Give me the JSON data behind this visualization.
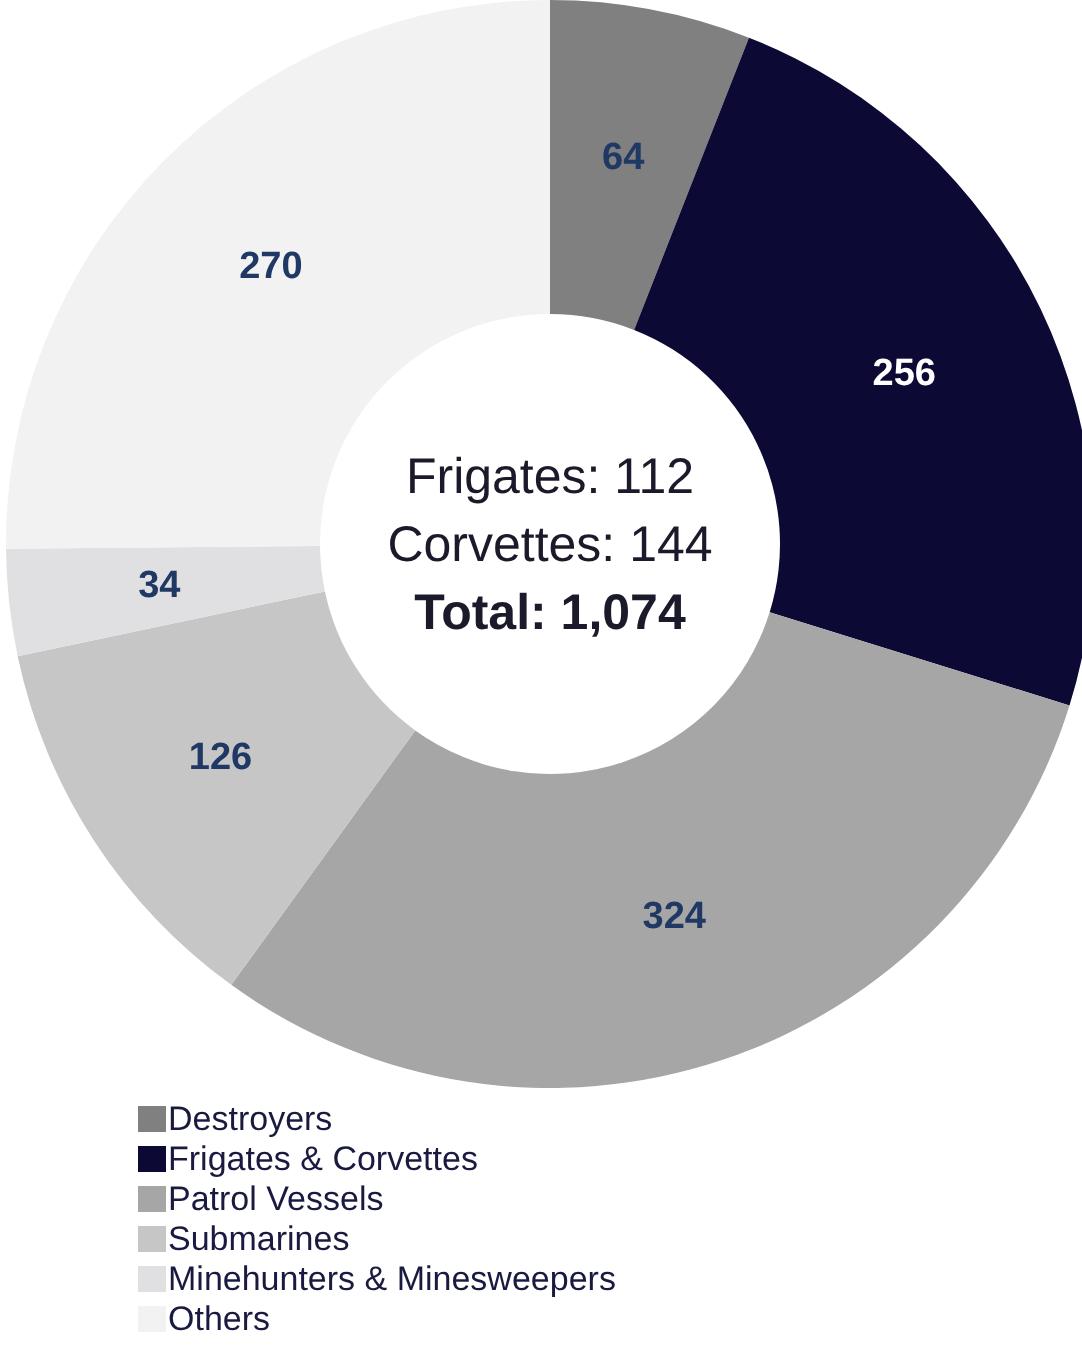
{
  "chart_data": {
    "type": "donut",
    "categories": [
      "Destroyers",
      "Frigates & Corvettes",
      "Patrol Vessels",
      "Submarines",
      "Minehunters & Minesweepers",
      "Others"
    ],
    "values": [
      64,
      256,
      324,
      126,
      34,
      270
    ],
    "colors": [
      "#808080",
      "#0c0a35",
      "#a6a6a6",
      "#c6c6c6",
      "#e0e0e2",
      "#f2f2f2"
    ],
    "data_labels": true,
    "legend": "bottom left",
    "annotations": [
      "Frigates: 112",
      "Corvettes: 144",
      "Total: 1,074"
    ]
  }
}
